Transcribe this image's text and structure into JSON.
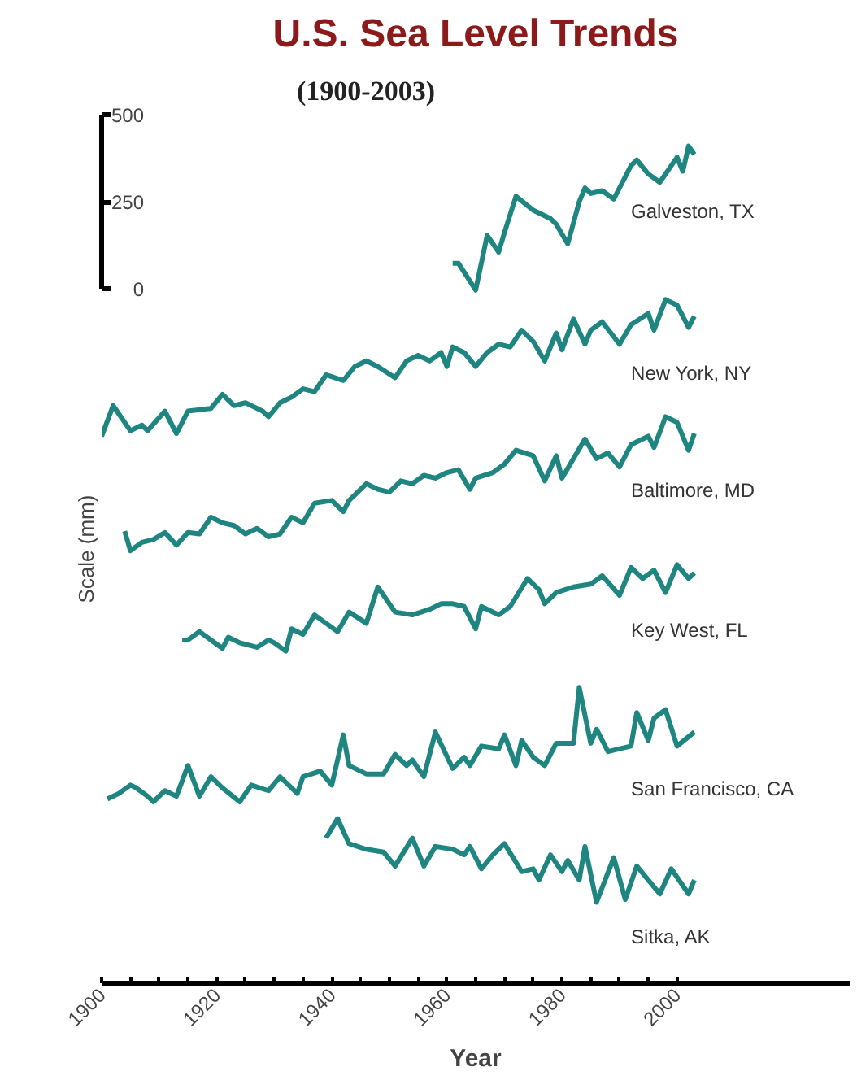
{
  "chart_data": {
    "type": "line",
    "title": "U.S. Sea Level Trends",
    "subtitle": "(1900-2003)",
    "xlabel": "Year",
    "ylabel": "Scale (mm)",
    "xlim": [
      1900,
      2030
    ],
    "ylim": [
      -1990,
      500
    ],
    "xticks": [
      1900,
      {
        "value": 1905,
        "label": null
      },
      {
        "value": 1910,
        "label": null
      },
      {
        "value": 1915,
        "label": null
      },
      1920,
      {
        "value": 1925,
        "label": null
      },
      {
        "value": 1930,
        "label": null
      },
      {
        "value": 1935,
        "label": null
      },
      1940,
      {
        "value": 1945,
        "label": null
      },
      {
        "value": 1950,
        "label": null
      },
      {
        "value": 1955,
        "label": null
      },
      1960,
      {
        "value": 1965,
        "label": null
      },
      {
        "value": 1970,
        "label": null
      },
      {
        "value": 1975,
        "label": null
      },
      1980,
      {
        "value": 1985,
        "label": null
      },
      {
        "value": 1990,
        "label": null
      },
      {
        "value": 1995,
        "label": null
      },
      2000
    ],
    "yticks": [
      0,
      250,
      500
    ],
    "series": [
      {
        "name": "Galveston, TX",
        "color": "#1f8580",
        "x": [
          1961,
          1962,
          1965,
          1967,
          1969,
          1970,
          1972,
          1975,
          1978,
          1979,
          1981,
          1983,
          1984,
          1985,
          1987,
          1989,
          1992,
          1993,
          1995,
          1997,
          2000,
          2001,
          2002,
          2003
        ],
        "values": [
          74,
          74,
          -3,
          154,
          106,
          162,
          266,
          226,
          202,
          186,
          130,
          250,
          290,
          274,
          282,
          258,
          354,
          370,
          330,
          306,
          378,
          338,
          410,
          386
        ]
      },
      {
        "name": "New York, NY",
        "color": "#1f8580",
        "x": [
          1900,
          1902,
          1905,
          1907,
          1908,
          1911,
          1913,
          1915,
          1919,
          1921,
          1923,
          1925,
          1928,
          1929,
          1931,
          1933,
          1935,
          1937,
          1939,
          1942,
          1944,
          1946,
          1948,
          1951,
          1953,
          1955,
          1957,
          1959,
          1960,
          1961,
          1963,
          1965,
          1967,
          1969,
          1971,
          1973,
          1975,
          1977,
          1979,
          1980,
          1982,
          1984,
          1985,
          1987,
          1990,
          1992,
          1995,
          1996,
          1998,
          2000,
          2002,
          2003
        ],
        "values": [
          -422,
          -334,
          -406,
          -390,
          -406,
          -350,
          -414,
          -350,
          -342,
          -302,
          -334,
          -326,
          -350,
          -366,
          -326,
          -310,
          -286,
          -294,
          -246,
          -262,
          -222,
          -206,
          -222,
          -254,
          -206,
          -190,
          -206,
          -182,
          -222,
          -166,
          -182,
          -222,
          -182,
          -158,
          -166,
          -118,
          -150,
          -206,
          -126,
          -174,
          -86,
          -158,
          -118,
          -94,
          -158,
          -102,
          -70,
          -118,
          -30,
          -46,
          -110,
          -78
        ]
      },
      {
        "name": "Baltimore, MD",
        "color": "#1f8580",
        "x": [
          1904,
          1905,
          1907,
          1909,
          1911,
          1913,
          1915,
          1917,
          1919,
          1921,
          1923,
          1925,
          1927,
          1929,
          1931,
          1933,
          1935,
          1937,
          1940,
          1942,
          1943,
          1946,
          1948,
          1950,
          1952,
          1954,
          1956,
          1958,
          1960,
          1962,
          1964,
          1965,
          1968,
          1970,
          1972,
          1975,
          1977,
          1979,
          1980,
          1984,
          1986,
          1988,
          1990,
          1992,
          1995,
          1996,
          1998,
          2000,
          2002,
          2003
        ],
        "values": [
          -694,
          -750,
          -726,
          -718,
          -698,
          -734,
          -698,
          -702,
          -654,
          -670,
          -678,
          -702,
          -686,
          -710,
          -702,
          -654,
          -670,
          -614,
          -606,
          -638,
          -606,
          -558,
          -574,
          -582,
          -550,
          -558,
          -534,
          -542,
          -526,
          -518,
          -574,
          -542,
          -526,
          -502,
          -462,
          -478,
          -550,
          -478,
          -542,
          -430,
          -486,
          -470,
          -510,
          -446,
          -422,
          -454,
          -366,
          -382,
          -462,
          -414
        ]
      },
      {
        "name": "Key West, FL",
        "color": "#1f8580",
        "x": [
          1914,
          1915,
          1917,
          1921,
          1922,
          1924,
          1927,
          1929,
          1930,
          1932,
          1933,
          1935,
          1937,
          1939,
          1941,
          1943,
          1946,
          1948,
          1951,
          1954,
          1957,
          1959,
          1961,
          1963,
          1965,
          1966,
          1969,
          1971,
          1974,
          1976,
          1977,
          1979,
          1982,
          1985,
          1987,
          1990,
          1992,
          1994,
          1996,
          1998,
          2000,
          2002,
          2003
        ],
        "values": [
          -1006,
          -1006,
          -982,
          -1030,
          -998,
          -1014,
          -1027,
          -1006,
          -1014,
          -1038,
          -974,
          -990,
          -934,
          -958,
          -982,
          -926,
          -958,
          -854,
          -926,
          -934,
          -918,
          -902,
          -902,
          -910,
          -974,
          -910,
          -934,
          -910,
          -830,
          -862,
          -902,
          -870,
          -854,
          -846,
          -822,
          -878,
          -798,
          -830,
          -806,
          -870,
          -790,
          -830,
          -814
        ]
      },
      {
        "name": "San Francisco, CA",
        "color": "#1f8580",
        "x": [
          1901,
          1903,
          1905,
          1906,
          1908,
          1909,
          1911,
          1913,
          1915,
          1917,
          1919,
          1921,
          1924,
          1926,
          1929,
          1931,
          1934,
          1935,
          1938,
          1940,
          1942,
          1943,
          1946,
          1949,
          1951,
          1953,
          1954,
          1956,
          1958,
          1961,
          1963,
          1964,
          1966,
          1969,
          1970,
          1972,
          1973,
          1975,
          1977,
          1979,
          1982,
          1983,
          1985,
          1986,
          1988,
          1992,
          1993,
          1995,
          1996,
          1998,
          2000,
          2003
        ],
        "values": [
          -1462,
          -1446,
          -1422,
          -1430,
          -1454,
          -1470,
          -1438,
          -1454,
          -1366,
          -1454,
          -1398,
          -1430,
          -1470,
          -1422,
          -1438,
          -1398,
          -1446,
          -1398,
          -1382,
          -1422,
          -1278,
          -1366,
          -1390,
          -1390,
          -1334,
          -1366,
          -1350,
          -1398,
          -1270,
          -1374,
          -1342,
          -1366,
          -1310,
          -1318,
          -1278,
          -1366,
          -1294,
          -1342,
          -1366,
          -1302,
          -1302,
          -1142,
          -1302,
          -1262,
          -1326,
          -1310,
          -1214,
          -1294,
          -1230,
          -1206,
          -1310,
          -1270
        ]
      },
      {
        "name": "Sitka, AK",
        "color": "#1f8580",
        "x": [
          1939,
          1941,
          1943,
          1946,
          1949,
          1951,
          1954,
          1956,
          1958,
          1961,
          1963,
          1964,
          1966,
          1968,
          1970,
          1973,
          1975,
          1976,
          1978,
          1980,
          1981,
          1983,
          1984,
          1986,
          1989,
          1991,
          1993,
          1995,
          1997,
          1999,
          2002,
          2003
        ],
        "values": [
          -1574,
          -1518,
          -1590,
          -1606,
          -1614,
          -1654,
          -1574,
          -1654,
          -1598,
          -1606,
          -1622,
          -1598,
          -1662,
          -1622,
          -1590,
          -1670,
          -1662,
          -1694,
          -1622,
          -1670,
          -1638,
          -1694,
          -1598,
          -1758,
          -1630,
          -1750,
          -1654,
          -1694,
          -1734,
          -1662,
          -1734,
          -1694
        ]
      }
    ]
  }
}
